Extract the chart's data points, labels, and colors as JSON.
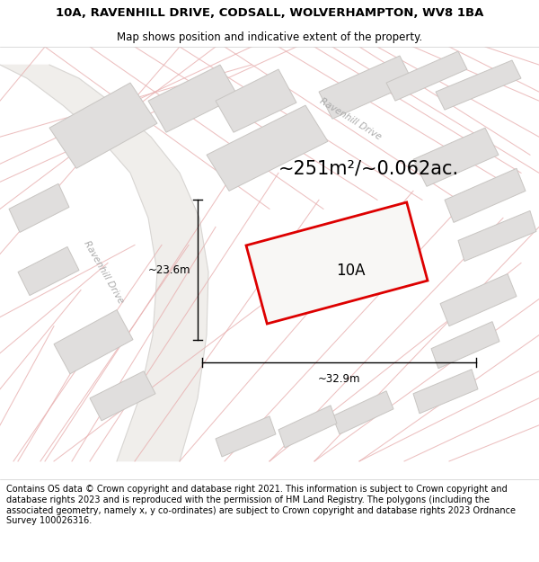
{
  "title_line1": "10A, RAVENHILL DRIVE, CODSALL, WOLVERHAMPTON, WV8 1BA",
  "title_line2": "Map shows position and indicative extent of the property.",
  "footer_text": "Contains OS data © Crown copyright and database right 2021. This information is subject to Crown copyright and database rights 2023 and is reproduced with the permission of HM Land Registry. The polygons (including the associated geometry, namely x, y co-ordinates) are subject to Crown copyright and database rights 2023 Ordnance Survey 100026316.",
  "area_label": "~251m²/~0.062ac.",
  "plot_label": "10A",
  "dim_width": "~32.9m",
  "dim_height": "~23.6m",
  "map_bg": "#f8f7f5",
  "plot_fill": "#f8f7f5",
  "plot_edge": "#dd0000",
  "building_fill": "#e0dedd",
  "building_edge": "#c8c5c2",
  "road_line_color": "#e8b0b0",
  "road_boundary_color": "#e8b0b0",
  "title_fontsize": 9.5,
  "subtitle_fontsize": 8.5,
  "footer_fontsize": 7.0,
  "label_fontsize": 12,
  "area_fontsize": 15,
  "dim_fontsize": 8.5
}
